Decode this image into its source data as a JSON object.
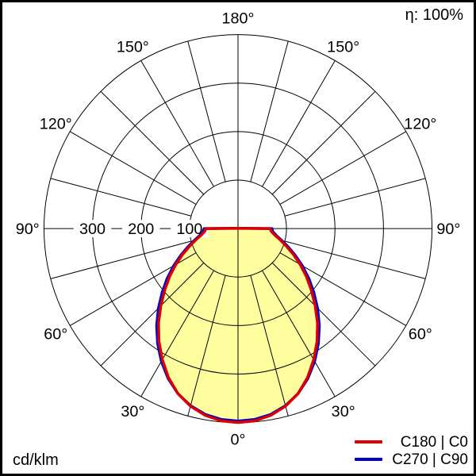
{
  "header": {
    "efficiency_label": "η: 100%"
  },
  "footer": {
    "unit_label": "cd/klm"
  },
  "legend": [
    {
      "label": "C180 | C0",
      "color": "#dd0000"
    },
    {
      "label": "C270 | C90",
      "color": "#0000cc"
    }
  ],
  "chart_data": {
    "type": "polar_intensity_distribution",
    "title": "",
    "unit": "cd/klm",
    "efficiency": "η: 100%",
    "orientation": "0_deg_at_bottom",
    "angle_labels_deg": [
      0,
      30,
      60,
      90,
      120,
      150,
      180
    ],
    "angle_grid_step_deg": 15,
    "radial_circles": [
      100,
      200,
      300,
      400
    ],
    "radial_tick_labels": [
      300,
      200,
      100
    ],
    "radial_max": 400,
    "grid_color": "#000000",
    "fill_color": "#ffffa0",
    "series": [
      {
        "name": "C180 | C0",
        "color": "#dd0000",
        "angles_deg": [
          0,
          5,
          10,
          15,
          20,
          25,
          30,
          35,
          40,
          45,
          50,
          55,
          60,
          65,
          70,
          75,
          80,
          85,
          90,
          95,
          100,
          120,
          150,
          180
        ],
        "values_cd_per_klm": [
          400,
          398,
          391,
          379,
          362,
          339,
          312,
          284,
          255,
          225,
          197,
          172,
          148,
          126,
          106,
          90,
          77,
          69,
          66,
          6,
          2,
          1,
          1,
          1
        ]
      },
      {
        "name": "C270 | C90",
        "color": "#0000cc",
        "angles_deg": [
          0,
          5,
          10,
          15,
          20,
          25,
          30,
          35,
          40,
          45,
          50,
          55,
          60,
          65,
          70,
          75,
          80,
          85,
          90,
          95,
          100,
          120,
          150,
          180
        ],
        "values_cd_per_klm": [
          397,
          395,
          389,
          378,
          362,
          341,
          316,
          289,
          261,
          232,
          204,
          178,
          153,
          130,
          110,
          93,
          80,
          72,
          70,
          7,
          3,
          1,
          1,
          1
        ]
      }
    ]
  }
}
